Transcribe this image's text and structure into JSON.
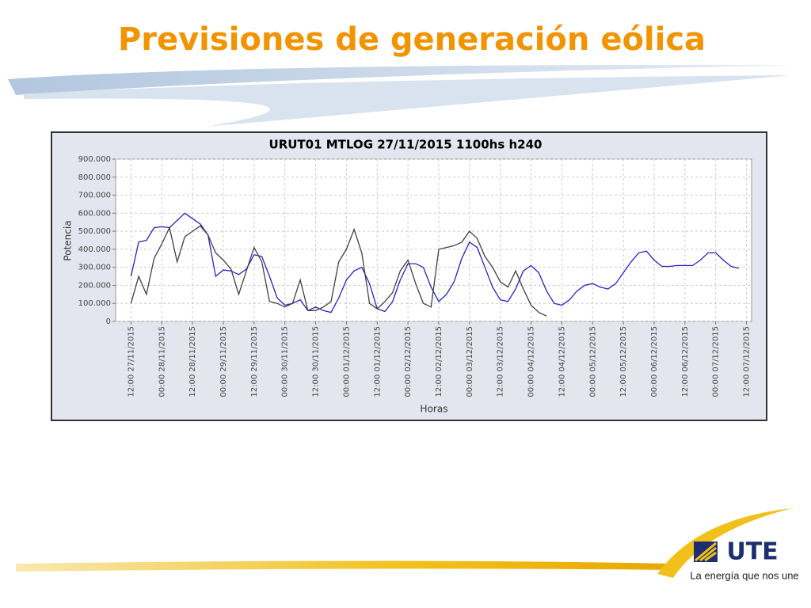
{
  "slide_title": "Previsiones de generación eólica",
  "logo": {
    "brand": "UTE",
    "tagline": "La energía que nos une"
  },
  "chart_data": {
    "type": "line",
    "title": "URUT01  MTLOG  27/11/2015  1100hs   h240",
    "y_label": "Potencia",
    "x_label": "Horas",
    "x": [
      "2015-11-27T12:00",
      "2015-11-27T15:00",
      "2015-11-27T18:00",
      "2015-11-27T21:00",
      "2015-11-28T00:00",
      "2015-11-28T03:00",
      "2015-11-28T06:00",
      "2015-11-28T09:00",
      "2015-11-28T12:00",
      "2015-11-28T15:00",
      "2015-11-28T18:00",
      "2015-11-28T21:00",
      "2015-11-29T00:00",
      "2015-11-29T03:00",
      "2015-11-29T06:00",
      "2015-11-29T09:00",
      "2015-11-29T12:00",
      "2015-11-29T15:00",
      "2015-11-29T18:00",
      "2015-11-29T21:00",
      "2015-11-30T00:00",
      "2015-11-30T03:00",
      "2015-11-30T06:00",
      "2015-11-30T09:00",
      "2015-11-30T12:00",
      "2015-11-30T15:00",
      "2015-11-30T18:00",
      "2015-11-30T21:00",
      "2015-12-01T00:00",
      "2015-12-01T03:00",
      "2015-12-01T06:00",
      "2015-12-01T09:00",
      "2015-12-01T12:00",
      "2015-12-01T15:00",
      "2015-12-01T18:00",
      "2015-12-01T21:00",
      "2015-12-02T00:00",
      "2015-12-02T03:00",
      "2015-12-02T06:00",
      "2015-12-02T09:00",
      "2015-12-02T12:00",
      "2015-12-02T15:00",
      "2015-12-02T18:00",
      "2015-12-02T21:00",
      "2015-12-03T00:00",
      "2015-12-03T03:00",
      "2015-12-03T06:00",
      "2015-12-03T09:00",
      "2015-12-03T12:00",
      "2015-12-03T15:00",
      "2015-12-03T18:00",
      "2015-12-03T21:00",
      "2015-12-04T00:00",
      "2015-12-04T03:00",
      "2015-12-04T06:00",
      "2015-12-04T09:00",
      "2015-12-04T12:00",
      "2015-12-04T15:00",
      "2015-12-04T18:00",
      "2015-12-04T21:00",
      "2015-12-05T00:00",
      "2015-12-05T03:00",
      "2015-12-05T06:00",
      "2015-12-05T09:00",
      "2015-12-05T12:00",
      "2015-12-05T15:00",
      "2015-12-05T18:00",
      "2015-12-05T21:00",
      "2015-12-06T00:00",
      "2015-12-06T03:00",
      "2015-12-06T06:00",
      "2015-12-06T09:00",
      "2015-12-06T12:00",
      "2015-12-06T15:00",
      "2015-12-06T18:00",
      "2015-12-06T21:00",
      "2015-12-07T00:00",
      "2015-12-07T03:00",
      "2015-12-07T06:00",
      "2015-12-07T09:00",
      "2015-12-07T12:00"
    ],
    "series": [
      {
        "color": "#2323c8",
        "values": [
          250000,
          440000,
          450000,
          520000,
          525000,
          520000,
          560000,
          600000,
          570000,
          540000,
          480000,
          250000,
          285000,
          280000,
          260000,
          290000,
          370000,
          360000,
          250000,
          130000,
          90000,
          100000,
          120000,
          60000,
          80000,
          60000,
          50000,
          130000,
          230000,
          280000,
          300000,
          210000,
          70000,
          55000,
          110000,
          230000,
          320000,
          320000,
          300000,
          190000,
          110000,
          150000,
          220000,
          350000,
          440000,
          410000,
          300000,
          190000,
          120000,
          110000,
          180000,
          280000,
          310000,
          270000,
          170000,
          100000,
          90000,
          120000,
          170000,
          200000,
          210000,
          190000,
          180000,
          210000,
          270000,
          330000,
          380000,
          390000,
          340000,
          305000,
          305000,
          310000,
          310000,
          310000,
          340000,
          380000,
          380000,
          340000,
          305000,
          295000,
          null
        ]
      },
      {
        "color": "#404040",
        "values": [
          100000,
          250000,
          150000,
          350000,
          430000,
          520000,
          330000,
          470000,
          500000,
          530000,
          480000,
          380000,
          340000,
          290000,
          150000,
          280000,
          410000,
          330000,
          110000,
          100000,
          80000,
          100000,
          230000,
          60000,
          60000,
          80000,
          110000,
          330000,
          400000,
          510000,
          380000,
          100000,
          70000,
          110000,
          160000,
          280000,
          340000,
          210000,
          100000,
          80000,
          400000,
          410000,
          420000,
          440000,
          500000,
          460000,
          360000,
          300000,
          220000,
          190000,
          280000,
          180000,
          90000,
          50000,
          30000,
          null,
          null,
          null,
          null,
          null,
          null,
          null,
          null,
          null,
          null,
          null,
          null,
          null,
          null,
          null,
          null,
          null,
          null,
          null,
          null,
          null,
          null,
          null,
          null,
          null,
          null
        ]
      }
    ],
    "xlim": [
      "2015-11-27T06:00",
      "2015-12-07T14:00"
    ],
    "xticks": [
      {
        "value": "2015-11-27T12:00",
        "label": "12:00 27/11/2015"
      },
      {
        "value": "2015-11-28T00:00",
        "label": "00:00 28/11/2015"
      },
      {
        "value": "2015-11-28T12:00",
        "label": "12:00 28/11/2015"
      },
      {
        "value": "2015-11-29T00:00",
        "label": "00:00 29/11/2015"
      },
      {
        "value": "2015-11-29T12:00",
        "label": "12:00 29/11/2015"
      },
      {
        "value": "2015-11-30T00:00",
        "label": "00:00 30/11/2015"
      },
      {
        "value": "2015-11-30T12:00",
        "label": "12:00 30/11/2015"
      },
      {
        "value": "2015-12-01T00:00",
        "label": "00:00 01/12/2015"
      },
      {
        "value": "2015-12-01T12:00",
        "label": "12:00 01/12/2015"
      },
      {
        "value": "2015-12-02T00:00",
        "label": "00:00 02/12/2015"
      },
      {
        "value": "2015-12-02T12:00",
        "label": "12:00 02/12/2015"
      },
      {
        "value": "2015-12-03T00:00",
        "label": "00:00 03/12/2015"
      },
      {
        "value": "2015-12-03T12:00",
        "label": "12:00 03/12/2015"
      },
      {
        "value": "2015-12-04T00:00",
        "label": "00:00 04/12/2015"
      },
      {
        "value": "2015-12-04T12:00",
        "label": "12:00 04/12/2015"
      },
      {
        "value": "2015-12-05T00:00",
        "label": "00:00 05/12/2015"
      },
      {
        "value": "2015-12-05T12:00",
        "label": "12:00 05/12/2015"
      },
      {
        "value": "2015-12-06T00:00",
        "label": "00:00 06/12/2015"
      },
      {
        "value": "2015-12-06T12:00",
        "label": "12:00 06/12/2015"
      },
      {
        "value": "2015-12-07T00:00",
        "label": "00:00 07/12/2015"
      },
      {
        "value": "2015-12-07T12:00",
        "label": "12:00 07/12/2015"
      }
    ],
    "ylim": [
      0,
      900000
    ],
    "yticks": [
      0,
      {
        "value": 100000,
        "label": "100.000"
      },
      {
        "value": 200000,
        "label": "200.000"
      },
      {
        "value": 300000,
        "label": "300.000"
      },
      {
        "value": 400000,
        "label": "400.000"
      },
      {
        "value": 500000,
        "label": "500.000"
      },
      {
        "value": 600000,
        "label": "600.000"
      },
      {
        "value": 700000,
        "label": "700.000"
      },
      {
        "value": 800000,
        "label": "800.000"
      },
      {
        "value": 900000,
        "label": "900.000"
      }
    ],
    "grid": true
  }
}
